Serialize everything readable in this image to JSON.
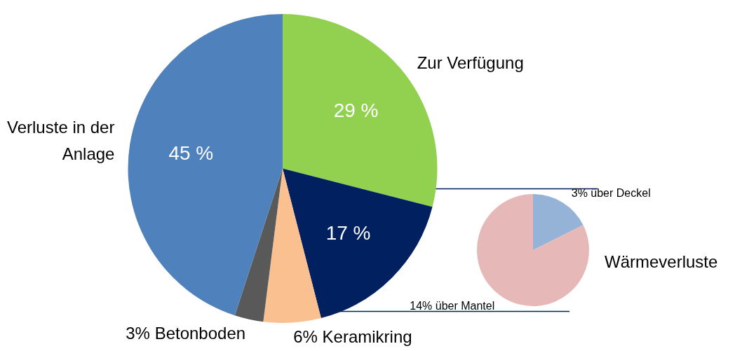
{
  "chart_data": [
    {
      "type": "pie",
      "categories": [
        "Zur Verfügung",
        null,
        "6% Keramikring",
        "3% Betonboden",
        "Verluste in der Anlage"
      ],
      "values": [
        29,
        17,
        6,
        3,
        45
      ],
      "colors": [
        "#92d050",
        "#002060",
        "#fac090",
        "#595959",
        "#4f81bd"
      ],
      "value_labels": [
        "29 %",
        "17 %",
        null,
        null,
        "45 %"
      ],
      "legend": false
    },
    {
      "type": "pie",
      "title": "Wärmeverluste",
      "categories": [
        "3% über Deckel",
        "14% über Mantel"
      ],
      "values": [
        3,
        14
      ],
      "colors": [
        "#95b3d7",
        "#e6b9b8"
      ],
      "legend": false
    }
  ]
}
